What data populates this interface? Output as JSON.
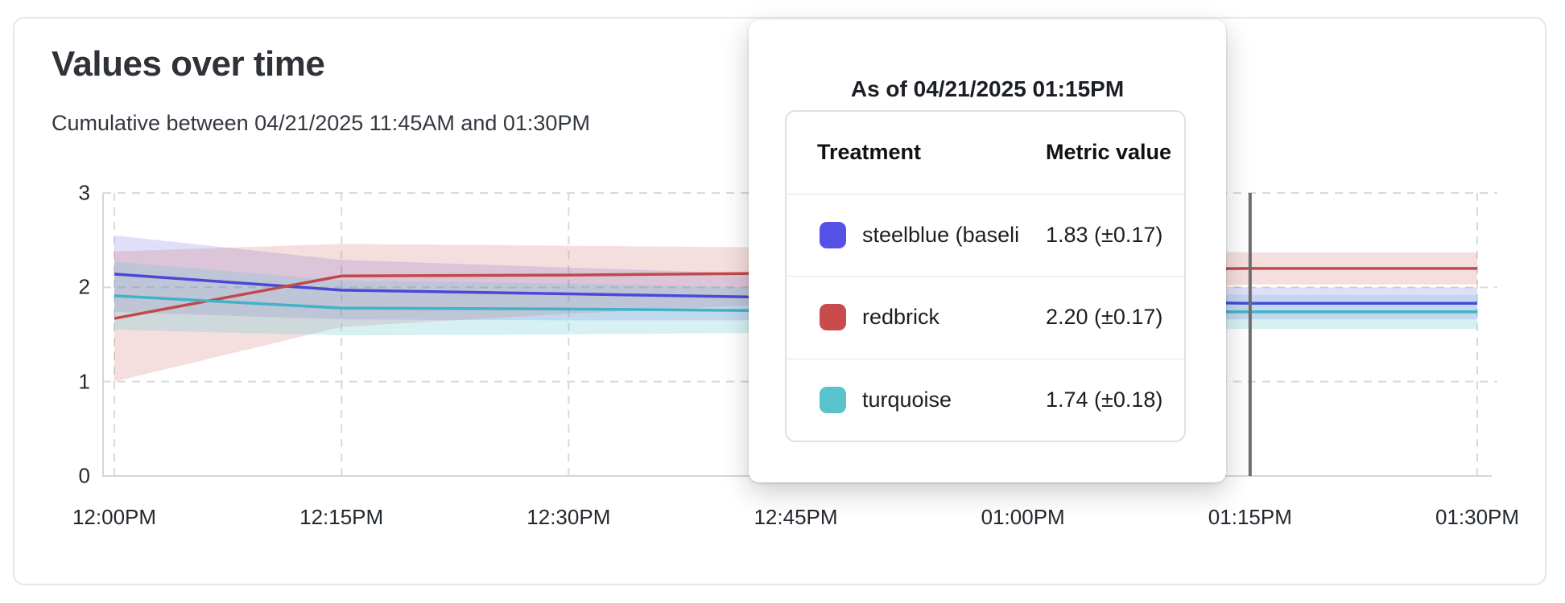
{
  "card": {
    "title": "Values over time",
    "subtitle": "Cumulative between 04/21/2025 11:45AM and 01:30PM"
  },
  "tooltip": {
    "title": "As of 04/21/2025 01:15PM",
    "col_treatment": "Treatment",
    "col_metric": "Metric value",
    "rows": [
      {
        "name": "steelblue  (baseli",
        "value": "1.83 (±0.17)",
        "color": "#5652e5"
      },
      {
        "name": "redbrick",
        "value": "2.20 (±0.17)",
        "color": "#c94c4c"
      },
      {
        "name": "turquoise",
        "value": "1.74 (±0.18)",
        "color": "#59c3cd"
      }
    ]
  },
  "chart_data": {
    "type": "line",
    "title": "Values over time",
    "subtitle": "Cumulative between 04/21/2025 11:45AM and 01:30PM",
    "x_labels": [
      "12:00PM",
      "12:15PM",
      "12:30PM",
      "12:45PM",
      "01:00PM",
      "01:15PM",
      "01:30PM"
    ],
    "y_ticks": [
      3,
      2,
      1,
      0
    ],
    "ylim": [
      0,
      3
    ],
    "grid": true,
    "cursor_at_label": "01:15PM",
    "cursor_color": "#6e6e6e",
    "grid_color": "#d9d9d9",
    "axis_color": "#d6d6d6",
    "series": [
      {
        "name": "steelblue (baseline)",
        "color": "#4a48d9",
        "band_color": "rgba(99,97,226,0.20)",
        "values": [
          2.14,
          1.97,
          1.93,
          1.89,
          1.86,
          1.83,
          1.83
        ],
        "lo": [
          1.74,
          1.66,
          1.65,
          1.65,
          1.66,
          1.66,
          1.66
        ],
        "hi": [
          2.55,
          2.29,
          2.21,
          2.13,
          2.06,
          2.0,
          2.0
        ]
      },
      {
        "name": "redbrick",
        "color": "#c04949",
        "band_color": "rgba(205,88,88,0.20)",
        "values": [
          1.67,
          2.12,
          2.13,
          2.15,
          2.18,
          2.2,
          2.2
        ],
        "lo": [
          1.0,
          1.58,
          1.72,
          1.83,
          1.94,
          2.03,
          2.03
        ],
        "hi": [
          2.38,
          2.46,
          2.44,
          2.42,
          2.4,
          2.37,
          2.37
        ]
      },
      {
        "name": "turquoise",
        "color": "#43b2c5",
        "band_color": "rgba(94,198,209,0.25)",
        "values": [
          1.91,
          1.78,
          1.77,
          1.75,
          1.74,
          1.74,
          1.74
        ],
        "lo": [
          1.55,
          1.49,
          1.5,
          1.52,
          1.54,
          1.56,
          1.56
        ],
        "hi": [
          2.27,
          2.07,
          2.04,
          1.99,
          1.95,
          1.92,
          1.92
        ]
      }
    ]
  }
}
